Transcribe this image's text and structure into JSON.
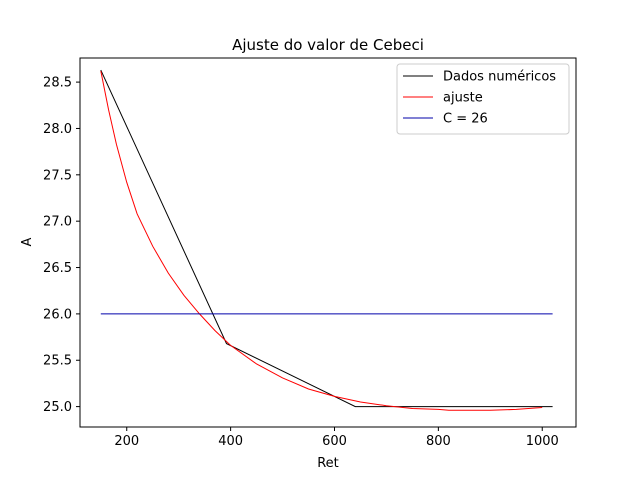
{
  "chart_data": {
    "type": "line",
    "title": "Ajuste do valor de Cebeci",
    "xlabel": "Ret",
    "ylabel": "A",
    "xlim": [
      110,
      1065
    ],
    "ylim": [
      24.78,
      28.76
    ],
    "xticks": [
      200,
      400,
      600,
      800,
      1000
    ],
    "yticks": [
      25.0,
      25.5,
      26.0,
      26.5,
      27.0,
      27.5,
      28.0,
      28.5
    ],
    "xtick_labels": [
      "200",
      "400",
      "600",
      "800",
      "1000"
    ],
    "ytick_labels": [
      "25.0",
      "25.5",
      "26.0",
      "26.5",
      "27.0",
      "27.5",
      "28.0",
      "28.5"
    ],
    "grid": false,
    "legend_position": "top-right",
    "series": [
      {
        "name": "Dados numéricos",
        "color": "#000000",
        "x": [
          150,
          392,
          640,
          1020
        ],
        "y": [
          28.63,
          25.68,
          25.0,
          25.0
        ]
      },
      {
        "name": "ajuste",
        "color": "#ff0000",
        "x": [
          150,
          165,
          180,
          200,
          220,
          250,
          280,
          310,
          340,
          370,
          400,
          450,
          500,
          550,
          600,
          650,
          700,
          750,
          800,
          820,
          850,
          900,
          950,
          1000
        ],
        "y": [
          28.62,
          28.2,
          27.83,
          27.42,
          27.08,
          26.73,
          26.44,
          26.2,
          26.0,
          25.82,
          25.66,
          25.46,
          25.31,
          25.19,
          25.11,
          25.05,
          25.01,
          24.98,
          24.97,
          24.96,
          24.96,
          24.96,
          24.97,
          24.99
        ]
      },
      {
        "name": "C = 26",
        "color": "#0000aa",
        "x": [
          150,
          1020
        ],
        "y": [
          26.0,
          26.0
        ]
      }
    ]
  }
}
